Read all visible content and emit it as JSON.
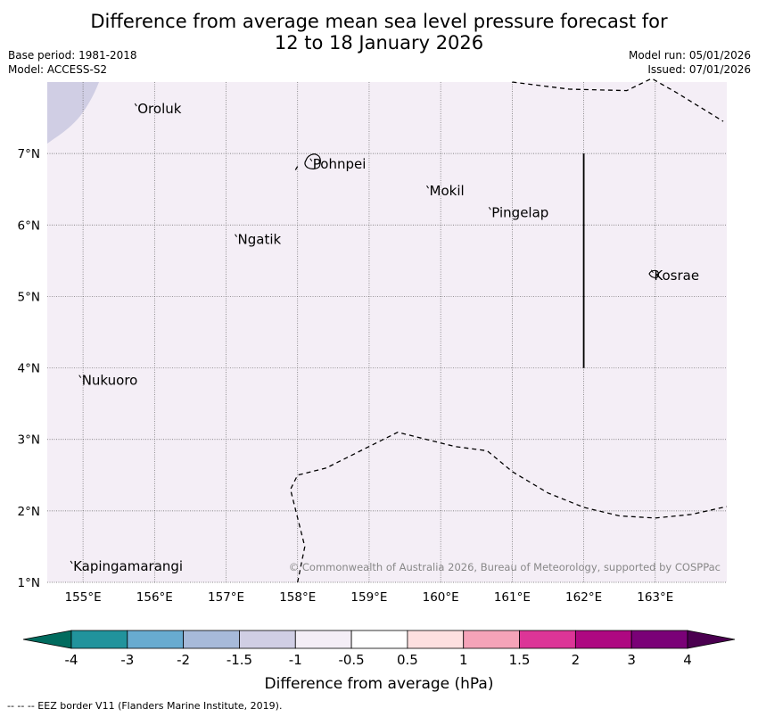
{
  "title": {
    "line1": "Difference from average mean sea level pressure forecast for",
    "line2": "12 to 18 January 2026"
  },
  "meta": {
    "base_period": "Base period: 1981-2018",
    "model": "Model: ACCESS-S2",
    "model_run": "Model run: 05/01/2026",
    "issued": "Issued: 07/01/2026"
  },
  "map": {
    "lon_range": [
      154.5,
      164.0
    ],
    "lat_range": [
      1.0,
      8.0
    ],
    "lon_ticks": [
      {
        "value": 155,
        "label": "155°E"
      },
      {
        "value": 156,
        "label": "156°E"
      },
      {
        "value": 157,
        "label": "157°E"
      },
      {
        "value": 158,
        "label": "158°E"
      },
      {
        "value": 159,
        "label": "159°E"
      },
      {
        "value": 160,
        "label": "160°E"
      },
      {
        "value": 161,
        "label": "161°E"
      },
      {
        "value": 162,
        "label": "162°E"
      },
      {
        "value": 163,
        "label": "163°E"
      }
    ],
    "lat_ticks": [
      {
        "value": 1,
        "label": "1°N"
      },
      {
        "value": 2,
        "label": "2°N"
      },
      {
        "value": 3,
        "label": "3°N"
      },
      {
        "value": 4,
        "label": "4°N"
      },
      {
        "value": 5,
        "label": "5°N"
      },
      {
        "value": 6,
        "label": "6°N"
      },
      {
        "value": 7,
        "label": "7°N"
      }
    ],
    "background_color": "#f4eef6",
    "anomaly_patch_color": "#ceceе0",
    "places": [
      {
        "name": "Oroluk",
        "lon": 155.75,
        "lat": 7.65
      },
      {
        "name": "Pohnpei",
        "lon": 158.2,
        "lat": 6.88
      },
      {
        "name": "Mokil",
        "lon": 159.83,
        "lat": 6.5
      },
      {
        "name": "Pingelap",
        "lon": 160.7,
        "lat": 6.2
      },
      {
        "name": "Ngatik",
        "lon": 157.15,
        "lat": 5.82
      },
      {
        "name": "Kosrae",
        "lon": 162.97,
        "lat": 5.32
      },
      {
        "name": "Nukuoro",
        "lon": 154.97,
        "lat": 3.85
      },
      {
        "name": "Kapingamarangi",
        "lon": 154.85,
        "lat": 1.25
      }
    ],
    "eez_border_top": [
      [
        161.0,
        8.0
      ],
      [
        161.8,
        7.9
      ],
      [
        162.6,
        7.88
      ],
      [
        162.95,
        8.05
      ],
      [
        163.3,
        7.85
      ],
      [
        163.95,
        7.45
      ]
    ],
    "eez_border_bottom": [
      [
        158.0,
        1.0
      ],
      [
        158.1,
        1.5
      ],
      [
        157.9,
        2.3
      ],
      [
        158.0,
        2.5
      ],
      [
        158.4,
        2.6
      ],
      [
        159.0,
        2.9
      ],
      [
        159.4,
        3.1
      ],
      [
        159.8,
        3.0
      ],
      [
        160.2,
        2.9
      ],
      [
        160.65,
        2.84
      ],
      [
        161.0,
        2.55
      ],
      [
        161.5,
        2.25
      ],
      [
        162.0,
        2.05
      ],
      [
        162.5,
        1.93
      ],
      [
        163.0,
        1.9
      ],
      [
        163.5,
        1.95
      ],
      [
        164.0,
        2.06
      ]
    ],
    "eez_border_small": [
      [
        157.97,
        6.77
      ],
      [
        158.0,
        6.82
      ]
    ],
    "boundary_line": [
      [
        162.0,
        7.0
      ],
      [
        162.0,
        4.0
      ]
    ],
    "copyright": "© Commonwealth of Australia 2026, Bureau of Meteorology, supported by COSPPac"
  },
  "colorbar": {
    "title": "Difference from average (hPa)",
    "low_extend_color": "#006b5e",
    "high_extend_color": "#4b0050",
    "bins": [
      {
        "color": "#21939c"
      },
      {
        "color": "#68abd0"
      },
      {
        "color": "#a7bad9"
      },
      {
        "color": "#d0cee4"
      },
      {
        "color": "#f4eef6"
      },
      {
        "color": "#ffffff"
      },
      {
        "color": "#fde0e0"
      },
      {
        "color": "#f5a3b8"
      },
      {
        "color": "#dc3597"
      },
      {
        "color": "#ae0881"
      },
      {
        "color": "#7a0177"
      }
    ],
    "labels": [
      "-4",
      "-3",
      "-2",
      "-1.5",
      "-1",
      "-0.5",
      "0.5",
      "1",
      "1.5",
      "2",
      "3",
      "4"
    ]
  },
  "footer": "--  --  -- EEZ border V11 (Flanders Marine Institute, 2019)."
}
